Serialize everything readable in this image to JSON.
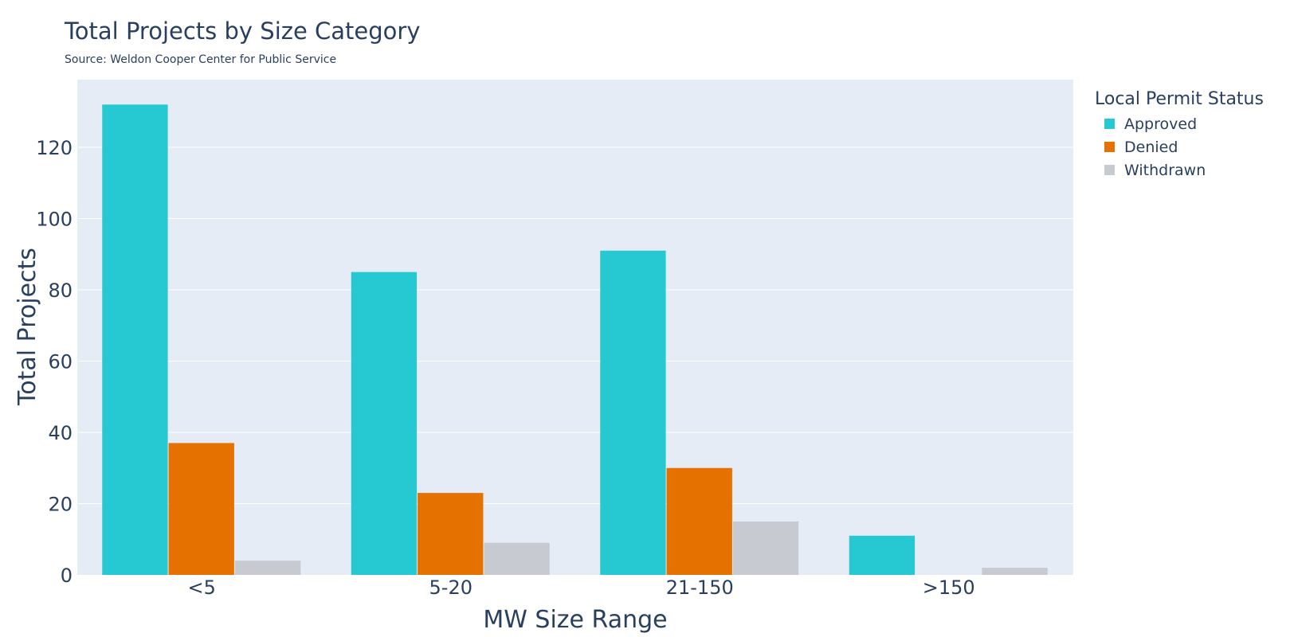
{
  "chart_data": {
    "type": "bar",
    "title": "Total Projects by Size Category",
    "subtitle": "Source: Weldon Cooper Center for Public Service",
    "xlabel": "MW Size Range",
    "ylabel": "Total Projects",
    "categories": [
      "<5",
      "5-20",
      "21-150",
      ">150"
    ],
    "ylim": [
      0,
      139
    ],
    "yticks": [
      0,
      20,
      40,
      60,
      80,
      100,
      120
    ],
    "grid": true,
    "legend_title": "Local Permit Status",
    "legend_position": "right",
    "series": [
      {
        "name": "Approved",
        "color": "#26c9d2",
        "values": [
          132,
          85,
          91,
          11
        ]
      },
      {
        "name": "Denied",
        "color": "#e57200",
        "values": [
          37,
          23,
          30,
          0
        ]
      },
      {
        "name": "Withdrawn",
        "color": "#c8cad1",
        "values": [
          4,
          9,
          15,
          2
        ]
      }
    ],
    "colors": {
      "plot_background": "#e5ecf6",
      "grid": "#ffffff",
      "text": "#2a3f5f"
    }
  }
}
